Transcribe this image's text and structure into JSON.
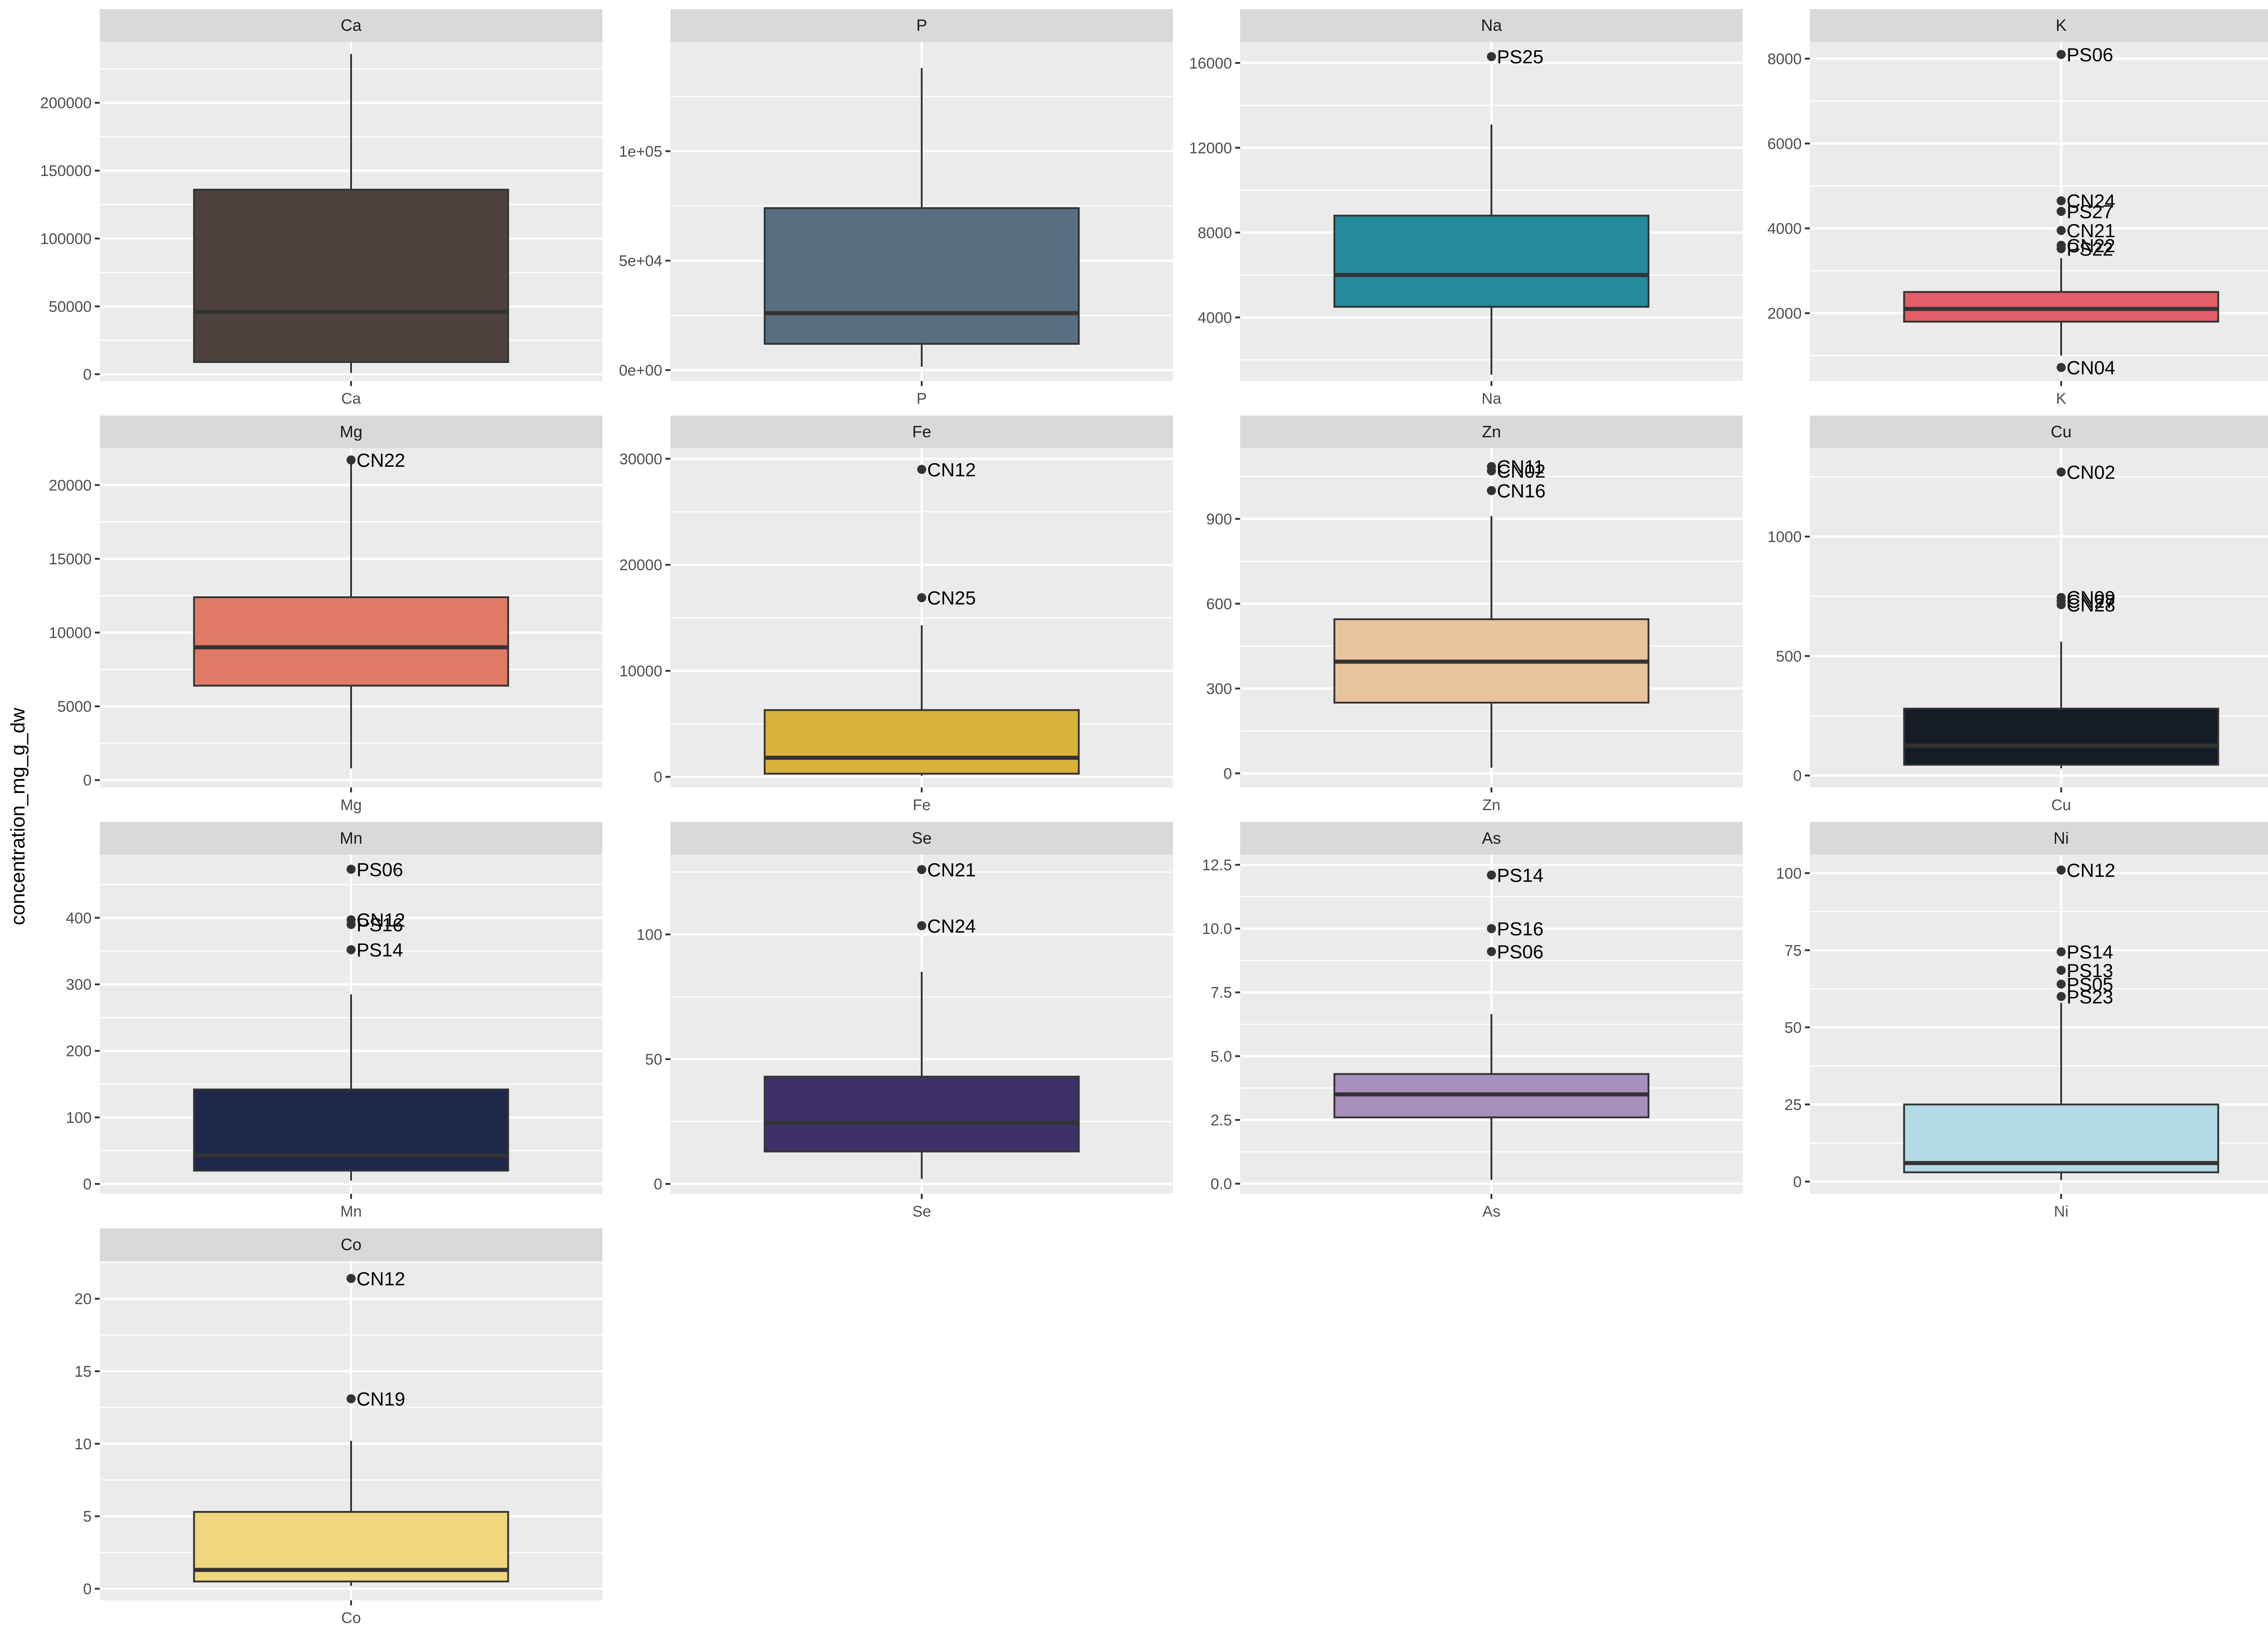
{
  "y_axis_title": "concentration_mg_g_dw",
  "chart_data": {
    "type": "boxplot",
    "facet_layout": "4 columns, free y scales",
    "ylabel": "concentration_mg_g_dw",
    "grid": true,
    "panels": [
      {
        "name": "Ca",
        "color": "#4e423f",
        "ylim": [
          -5000,
          245000
        ],
        "ticks": [
          0,
          50000,
          100000,
          150000,
          200000
        ],
        "tick_labels": [
          "0",
          "50000",
          "100000",
          "150000",
          "200000"
        ],
        "stats": {
          "min": 1000,
          "q1": 9000,
          "median": 46000,
          "q3": 136000,
          "max": 236000
        },
        "outliers": []
      },
      {
        "name": "P",
        "color": "#596e80",
        "ylim": [
          -5000,
          150000
        ],
        "ticks": [
          0,
          50000,
          100000
        ],
        "tick_labels": [
          "0e+00",
          "5e+04",
          "1e+05"
        ],
        "stats": {
          "min": 1500,
          "q1": 12000,
          "median": 26000,
          "q3": 74000,
          "max": 138000
        },
        "outliers": []
      },
      {
        "name": "Na",
        "color": "#258a99",
        "ylim": [
          1000,
          17000
        ],
        "ticks": [
          4000,
          8000,
          12000,
          16000
        ],
        "tick_labels": [
          "4000",
          "8000",
          "12000",
          "16000"
        ],
        "stats": {
          "min": 1300,
          "q1": 4500,
          "median": 6000,
          "q3": 8800,
          "max": 13100
        },
        "outliers": [
          {
            "label": "PS25",
            "value": 16300
          }
        ]
      },
      {
        "name": "K",
        "color": "#e25e68",
        "ylim": [
          400,
          8400
        ],
        "ticks": [
          2000,
          4000,
          6000,
          8000
        ],
        "tick_labels": [
          "2000",
          "4000",
          "6000",
          "8000"
        ],
        "stats": {
          "min": 1000,
          "q1": 1800,
          "median": 2100,
          "q3": 2500,
          "max": 3300
        },
        "outliers": [
          {
            "label": "PS06",
            "value": 8100
          },
          {
            "label": "CN24",
            "value": 4650
          },
          {
            "label": "PS27",
            "value": 4400
          },
          {
            "label": "CN21",
            "value": 3950
          },
          {
            "label": "CN22",
            "value": 3600
          },
          {
            "label": "PS22",
            "value": 3520
          },
          {
            "label": "CN04",
            "value": 720
          }
        ]
      },
      {
        "name": "Mg",
        "color": "#e07a66",
        "ylim": [
          -500,
          22500
        ],
        "ticks": [
          0,
          5000,
          10000,
          15000,
          20000
        ],
        "tick_labels": [
          "0",
          "5000",
          "10000",
          "15000",
          "20000"
        ],
        "stats": {
          "min": 800,
          "q1": 6400,
          "median": 9000,
          "q3": 12400,
          "max": 21500
        },
        "outliers": [
          {
            "label": "CN22",
            "value": 21700
          }
        ]
      },
      {
        "name": "Fe",
        "color": "#d9b13b",
        "ylim": [
          -1000,
          31000
        ],
        "ticks": [
          0,
          10000,
          20000,
          30000
        ],
        "tick_labels": [
          "0",
          "10000",
          "20000",
          "30000"
        ],
        "stats": {
          "min": 100,
          "q1": 300,
          "median": 1800,
          "q3": 6300,
          "max": 14300
        },
        "outliers": [
          {
            "label": "CN12",
            "value": 29000
          },
          {
            "label": "CN25",
            "value": 16900
          }
        ]
      },
      {
        "name": "Zn",
        "color": "#e9c29e",
        "ylim": [
          -50,
          1150
        ],
        "ticks": [
          0,
          300,
          600,
          900
        ],
        "tick_labels": [
          "0",
          "300",
          "600",
          "900"
        ],
        "stats": {
          "min": 20,
          "q1": 250,
          "median": 395,
          "q3": 545,
          "max": 910
        },
        "outliers": [
          {
            "label": "CN11",
            "value": 1085
          },
          {
            "label": "CN02",
            "value": 1070
          },
          {
            "label": "CN16",
            "value": 1000
          }
        ]
      },
      {
        "name": "Cu",
        "color": "#151c26",
        "ylim": [
          -50,
          1370
        ],
        "ticks": [
          0,
          500,
          1000
        ],
        "tick_labels": [
          "0",
          "500",
          "1000"
        ],
        "stats": {
          "min": 30,
          "q1": 45,
          "median": 125,
          "q3": 280,
          "max": 560
        },
        "outliers": [
          {
            "label": "CN02",
            "value": 1270
          },
          {
            "label": "CN09",
            "value": 745
          },
          {
            "label": "CN27",
            "value": 730
          },
          {
            "label": "CN28",
            "value": 715
          }
        ]
      },
      {
        "name": "Mn",
        "color": "#1e284b",
        "ylim": [
          -15,
          495
        ],
        "ticks": [
          0,
          100,
          200,
          300,
          400
        ],
        "tick_labels": [
          "0",
          "100",
          "200",
          "300",
          "400"
        ],
        "stats": {
          "min": 5,
          "q1": 20,
          "median": 43,
          "q3": 142,
          "max": 285
        },
        "outliers": [
          {
            "label": "PS06",
            "value": 473
          },
          {
            "label": "CN12",
            "value": 397
          },
          {
            "label": "PS16",
            "value": 390
          },
          {
            "label": "PS14",
            "value": 352
          }
        ]
      },
      {
        "name": "Se",
        "color": "#3e3168",
        "ylim": [
          -4,
          132
        ],
        "ticks": [
          0,
          50,
          100
        ],
        "tick_labels": [
          "0",
          "50",
          "100"
        ],
        "stats": {
          "min": 2,
          "q1": 13,
          "median": 24.5,
          "q3": 43,
          "max": 85
        },
        "outliers": [
          {
            "label": "CN21",
            "value": 126
          },
          {
            "label": "CN24",
            "value": 103.5
          }
        ]
      },
      {
        "name": "As",
        "color": "#a88fbd",
        "ylim": [
          -0.4,
          12.9
        ],
        "ticks": [
          0,
          2.5,
          5,
          7.5,
          10,
          12.5
        ],
        "tick_labels": [
          "0.0",
          "2.5",
          "5.0",
          "7.5",
          "10.0",
          "12.5"
        ],
        "stats": {
          "min": 0.15,
          "q1": 2.6,
          "median": 3.5,
          "q3": 4.3,
          "max": 6.65
        },
        "outliers": [
          {
            "label": "PS14",
            "value": 12.1
          },
          {
            "label": "PS16",
            "value": 10
          },
          {
            "label": "PS06",
            "value": 9.1
          }
        ]
      },
      {
        "name": "Ni",
        "color": "#b3dae5",
        "ylim": [
          -4,
          106
        ],
        "ticks": [
          0,
          25,
          50,
          75,
          100
        ],
        "tick_labels": [
          "0",
          "25",
          "50",
          "75",
          "100"
        ],
        "stats": {
          "min": 0.5,
          "q1": 3,
          "median": 6,
          "q3": 25,
          "max": 58
        },
        "outliers": [
          {
            "label": "CN12",
            "value": 101
          },
          {
            "label": "PS14",
            "value": 74.5
          },
          {
            "label": "PS13",
            "value": 68.5
          },
          {
            "label": "PS05",
            "value": 64
          },
          {
            "label": "PS23",
            "value": 60
          }
        ]
      },
      {
        "name": "Co",
        "color": "#f0d67c",
        "ylim": [
          -0.8,
          22.6
        ],
        "ticks": [
          0,
          5,
          10,
          15,
          20
        ],
        "tick_labels": [
          "0",
          "5",
          "10",
          "15",
          "20"
        ],
        "stats": {
          "min": 0.2,
          "q1": 0.5,
          "median": 1.3,
          "q3": 5.3,
          "max": 10.2
        },
        "outliers": [
          {
            "label": "CN12",
            "value": 21.4
          },
          {
            "label": "CN19",
            "value": 13.1
          }
        ]
      }
    ]
  }
}
